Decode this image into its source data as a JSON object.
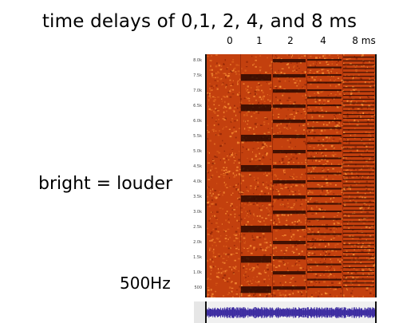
{
  "title": "time delays of  0,1, 2, 4, and 8 ms",
  "delay_labels": [
    "0",
    "1",
    "2",
    "4",
    "8 ms"
  ],
  "side_note": "bright = louder",
  "freq_note": "500Hz",
  "y_ticks": [
    "8.0k",
    "7.5k",
    "7.0k",
    "6.5k",
    "6.0k",
    "5.5k",
    "5.0k",
    "4.5k",
    "4.0k",
    "3.5k",
    "3.0k",
    "2.5k",
    "2.0k",
    "1.5k",
    "1.0k",
    "500"
  ],
  "colors": {
    "spectrogram_base": "#c3400e",
    "spectrogram_bright": "#ff9a3a",
    "notch_dark": "#2a0800",
    "waveform": "#3b2aa0"
  }
}
